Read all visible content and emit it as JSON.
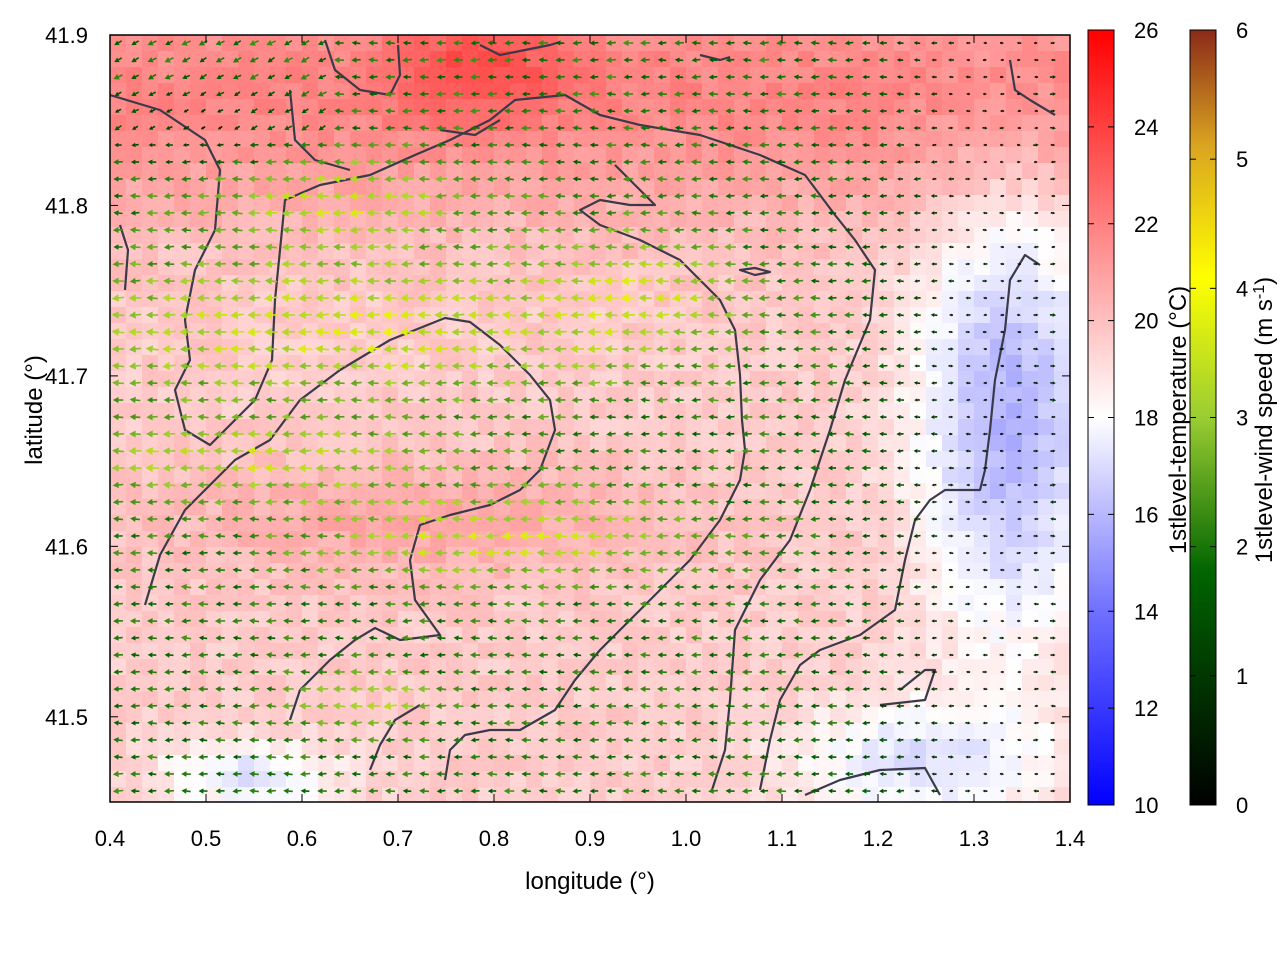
{
  "chart_data": {
    "type": "heatmap",
    "description_fields": "1st level temperature field with wind vector arrows colored by wind speed",
    "xlabel": "longitude (°)",
    "ylabel": "latitude (°)",
    "xlim": [
      0.4,
      1.4
    ],
    "ylim": [
      41.45,
      41.9
    ],
    "x_ticks": [
      "0.4",
      "0.5",
      "0.6",
      "0.7",
      "0.8",
      "0.9",
      "1.0",
      "1.1",
      "1.2",
      "1.3",
      "1.4"
    ],
    "y_ticks": [
      "41.5",
      "41.6",
      "41.7",
      "41.8",
      "41.9"
    ],
    "temperature_colorbar": {
      "label": "1stlevel-temperature (°C)",
      "range": [
        10,
        26
      ],
      "ticks": [
        "10",
        "12",
        "14",
        "16",
        "18",
        "20",
        "22",
        "24",
        "26"
      ],
      "colors": [
        "#0000ff",
        "#ffffff",
        "#ff0000"
      ]
    },
    "wind_colorbar": {
      "label_main": "1stlevel-wind speed (m s",
      "label_sup": "-1",
      "label_end": ")",
      "range": [
        0,
        6
      ],
      "ticks": [
        "0",
        "1",
        "2",
        "3",
        "4",
        "5",
        "6"
      ],
      "colors": [
        "#000000",
        "#006400",
        "#9acd32",
        "#ffff00",
        "#daa520",
        "#8b2a1a"
      ]
    },
    "wind_direction": "predominantly easterly (arrows point west)",
    "grid": false
  }
}
